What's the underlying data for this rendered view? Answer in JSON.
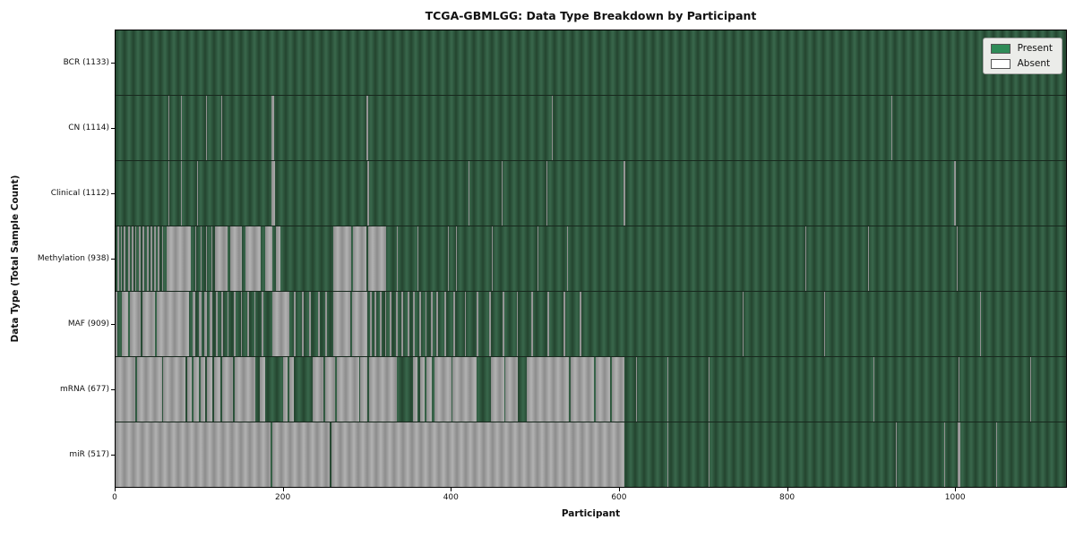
{
  "title": "TCGA-GBMLGG: Data Type Breakdown by Participant",
  "axes": {
    "xlabel": "Participant",
    "ylabel": "Data Type (Total Sample Count)"
  },
  "colors": {
    "present": "#2e8b57",
    "absent": "#ffffff",
    "present_blend": "#2d5440",
    "absent_blend": "#9e9e9e",
    "plot_border": "#000000",
    "legend_bg": "#ebece9"
  },
  "chart_data": {
    "type": "heatmap",
    "title": "TCGA-GBMLGG: Data Type Breakdown by Participant",
    "xlabel": "Participant",
    "ylabel": "Data Type (Total Sample Count)",
    "x_range": [
      0,
      1133
    ],
    "x_ticks": [
      0,
      200,
      400,
      600,
      800,
      1000
    ],
    "grid": false,
    "legend_position": "upper right",
    "legend": [
      {
        "label": "Present",
        "color": "#2e8b57"
      },
      {
        "label": "Absent",
        "color": "#ffffff"
      }
    ],
    "rows": [
      {
        "label": "BCR (1133)",
        "name": "BCR",
        "total": 1133,
        "absent_segments": []
      },
      {
        "label": "CN (1114)",
        "name": "CN",
        "total": 1114,
        "absent_segments": [
          [
            63,
            64
          ],
          [
            78,
            79
          ],
          [
            108,
            109
          ],
          [
            126,
            127
          ],
          [
            186,
            189
          ],
          [
            259,
            260
          ],
          [
            299,
            301
          ],
          [
            511,
            512
          ],
          [
            520,
            521
          ],
          [
            925,
            926
          ]
        ]
      },
      {
        "label": "Clinical (1112)",
        "name": "Clinical",
        "total": 1112,
        "absent_segments": [
          [
            63,
            64
          ],
          [
            78,
            79
          ],
          [
            97,
            98
          ],
          [
            186,
            190
          ],
          [
            259,
            260
          ],
          [
            300,
            302
          ],
          [
            421,
            422
          ],
          [
            460,
            461
          ],
          [
            514,
            515
          ],
          [
            606,
            608
          ],
          [
            1000,
            1002
          ]
        ]
      },
      {
        "label": "Methylation (938)",
        "name": "Methylation",
        "total": 938,
        "absent_segments": [
          [
            2,
            4
          ],
          [
            6,
            8
          ],
          [
            10,
            12
          ],
          [
            15,
            17
          ],
          [
            19,
            21
          ],
          [
            23,
            25
          ],
          [
            28,
            30
          ],
          [
            32,
            34
          ],
          [
            37,
            39
          ],
          [
            42,
            44
          ],
          [
            46,
            48
          ],
          [
            50,
            52
          ],
          [
            55,
            57
          ],
          [
            61,
            90
          ],
          [
            95,
            96
          ],
          [
            101,
            102
          ],
          [
            108,
            109
          ],
          [
            114,
            115
          ],
          [
            118,
            134
          ],
          [
            137,
            151
          ],
          [
            155,
            173
          ],
          [
            178,
            187
          ],
          [
            191,
            196
          ],
          [
            259,
            281
          ],
          [
            283,
            299
          ],
          [
            301,
            323
          ],
          [
            335,
            336
          ],
          [
            360,
            361
          ],
          [
            396,
            397
          ],
          [
            406,
            407
          ],
          [
            449,
            450
          ],
          [
            503,
            504
          ],
          [
            538,
            539
          ],
          [
            822,
            823
          ],
          [
            897,
            898
          ],
          [
            1003,
            1004
          ]
        ]
      },
      {
        "label": "MAF (909)",
        "name": "MAF",
        "total": 909,
        "absent_segments": [
          [
            0,
            2
          ],
          [
            7,
            15
          ],
          [
            17,
            30
          ],
          [
            32,
            47
          ],
          [
            49,
            88
          ],
          [
            92,
            95
          ],
          [
            99,
            102
          ],
          [
            106,
            109
          ],
          [
            112,
            115
          ],
          [
            120,
            122
          ],
          [
            126,
            128
          ],
          [
            133,
            135
          ],
          [
            141,
            143
          ],
          [
            149,
            151
          ],
          [
            157,
            159
          ],
          [
            165,
            167
          ],
          [
            174,
            176
          ],
          [
            187,
            207
          ],
          [
            213,
            215
          ],
          [
            222,
            224
          ],
          [
            231,
            233
          ],
          [
            241,
            243
          ],
          [
            250,
            252
          ],
          [
            259,
            280
          ],
          [
            282,
            300
          ],
          [
            303,
            305
          ],
          [
            309,
            311
          ],
          [
            315,
            317
          ],
          [
            321,
            323
          ],
          [
            327,
            329
          ],
          [
            334,
            336
          ],
          [
            341,
            343
          ],
          [
            348,
            350
          ],
          [
            355,
            357
          ],
          [
            362,
            364
          ],
          [
            369,
            371
          ],
          [
            376,
            378
          ],
          [
            382,
            384
          ],
          [
            392,
            394
          ],
          [
            403,
            405
          ],
          [
            416,
            418
          ],
          [
            430,
            432
          ],
          [
            445,
            447
          ],
          [
            461,
            463
          ],
          [
            478,
            480
          ],
          [
            496,
            498
          ],
          [
            515,
            517
          ],
          [
            534,
            536
          ],
          [
            553,
            555
          ],
          [
            748,
            749
          ],
          [
            845,
            846
          ],
          [
            1031,
            1032
          ]
        ]
      },
      {
        "label": "mRNA (677)",
        "name": "mRNA",
        "total": 677,
        "absent_segments": [
          [
            0,
            24
          ],
          [
            26,
            55
          ],
          [
            57,
            83
          ],
          [
            85,
            91
          ],
          [
            93,
            99
          ],
          [
            101,
            107
          ],
          [
            109,
            115
          ],
          [
            117,
            125
          ],
          [
            127,
            140
          ],
          [
            142,
            167
          ],
          [
            172,
            178
          ],
          [
            200,
            205
          ],
          [
            207,
            213
          ],
          [
            235,
            248
          ],
          [
            250,
            262
          ],
          [
            264,
            290
          ],
          [
            292,
            300
          ],
          [
            302,
            335
          ],
          [
            355,
            360
          ],
          [
            363,
            368
          ],
          [
            371,
            377
          ],
          [
            380,
            400
          ],
          [
            402,
            430
          ],
          [
            447,
            463
          ],
          [
            465,
            480
          ],
          [
            490,
            540
          ],
          [
            542,
            570
          ],
          [
            572,
            590
          ],
          [
            592,
            607
          ],
          [
            620,
            621
          ],
          [
            658,
            659
          ],
          [
            707,
            708
          ],
          [
            903,
            904
          ],
          [
            952,
            953
          ],
          [
            1005,
            1006
          ],
          [
            1090,
            1091
          ]
        ]
      },
      {
        "label": "miR (517)",
        "name": "miR",
        "total": 517,
        "absent_segments": [
          [
            0,
            185
          ],
          [
            187,
            255
          ],
          [
            257,
            607
          ],
          [
            658,
            659
          ],
          [
            707,
            708
          ],
          [
            930,
            931
          ],
          [
            952,
            953
          ],
          [
            988,
            989
          ],
          [
            1004,
            1007
          ],
          [
            1050,
            1051
          ]
        ]
      }
    ]
  }
}
